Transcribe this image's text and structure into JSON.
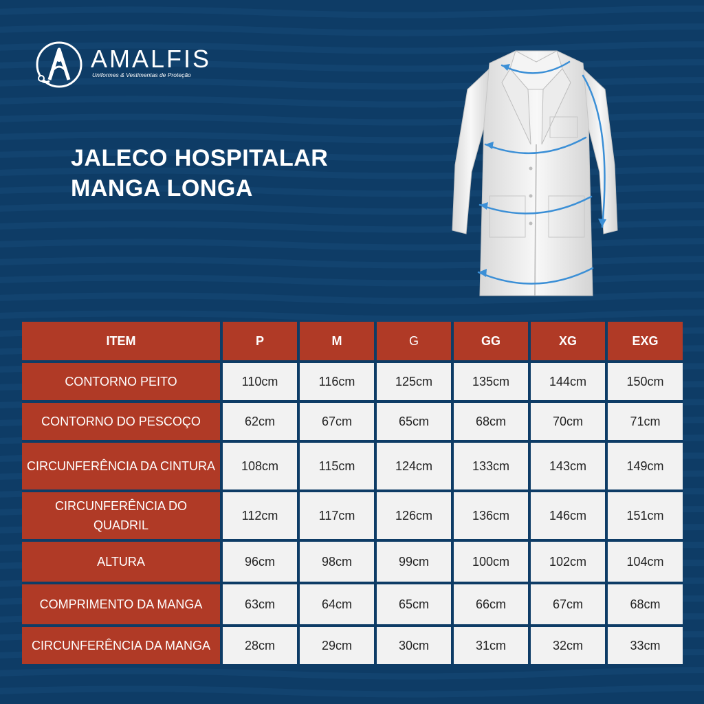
{
  "brand": {
    "name": "AMALFIS",
    "tagline": "Uniformes & Vestimentas de Proteção"
  },
  "title": {
    "line1": "JALECO HOSPITALAR",
    "line2": "MANGA LONGA"
  },
  "colors": {
    "background": "#0e3c66",
    "header_fill": "#b03a26",
    "cell_fill": "#f2f2f2",
    "measure_arrow": "#3b8fd6"
  },
  "product_image": "white-long-sleeve-lab-coat-with-measurement-arrows",
  "table": {
    "headers": [
      "ITEM",
      "P",
      "M",
      "G",
      "GG",
      "XG",
      "EXG"
    ],
    "rows": [
      {
        "item": "CONTORNO PEITO",
        "values": [
          "110cm",
          "116cm",
          "125cm",
          "135cm",
          "144cm",
          "150cm"
        ]
      },
      {
        "item": "CONTORNO DO PESCOÇO",
        "values": [
          "62cm",
          "67cm",
          "65cm",
          "68cm",
          "70cm",
          "71cm"
        ]
      },
      {
        "item": "CIRCUNFERÊNCIA DA CINTURA",
        "values": [
          "108cm",
          "115cm",
          "124cm",
          "133cm",
          "143cm",
          "149cm"
        ]
      },
      {
        "item": "CIRCUNFERÊNCIA DO QUADRIL",
        "values": [
          "112cm",
          "117cm",
          "126cm",
          "136cm",
          "146cm",
          "151cm"
        ]
      },
      {
        "item": "ALTURA",
        "values": [
          "96cm",
          "98cm",
          "99cm",
          "100cm",
          "102cm",
          "104cm"
        ]
      },
      {
        "item": "COMPRIMENTO DA MANGA",
        "values": [
          "63cm",
          "64cm",
          "65cm",
          "66cm",
          "67cm",
          "68cm"
        ]
      },
      {
        "item": "CIRCUNFERÊNCIA DA MANGA",
        "values": [
          "28cm",
          "29cm",
          "30cm",
          "31cm",
          "32cm",
          "33cm"
        ]
      }
    ]
  }
}
